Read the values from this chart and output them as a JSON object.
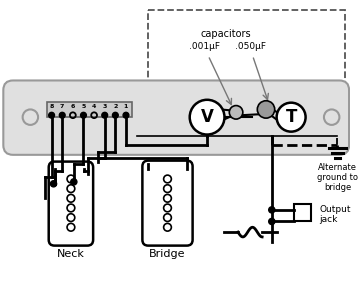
{
  "bg_color": "#ffffff",
  "black": "#000000",
  "gray_line": "#999999",
  "plate_fill": "#e0e0e0",
  "switch_fill": "#cccccc",
  "cap1_fill": "#bbbbbb",
  "cap2_fill": "#999999",
  "capacitors_label": "capacitors",
  "cap1_label": ".001μF",
  "cap2_label": ".050μF",
  "alt_ground_label": "Alternate\nground to\nbridge",
  "output_jack_label": "Output\njack",
  "neck_label": "Neck",
  "bridge_label": "Bridge",
  "switch_nums": [
    "8",
    "7",
    "6",
    "5",
    "4",
    "3",
    "2",
    "1"
  ],
  "switch_filled": [
    true,
    true,
    false,
    true,
    false,
    true,
    true,
    true
  ],
  "vpot_label": "V",
  "tpot_label": "T"
}
